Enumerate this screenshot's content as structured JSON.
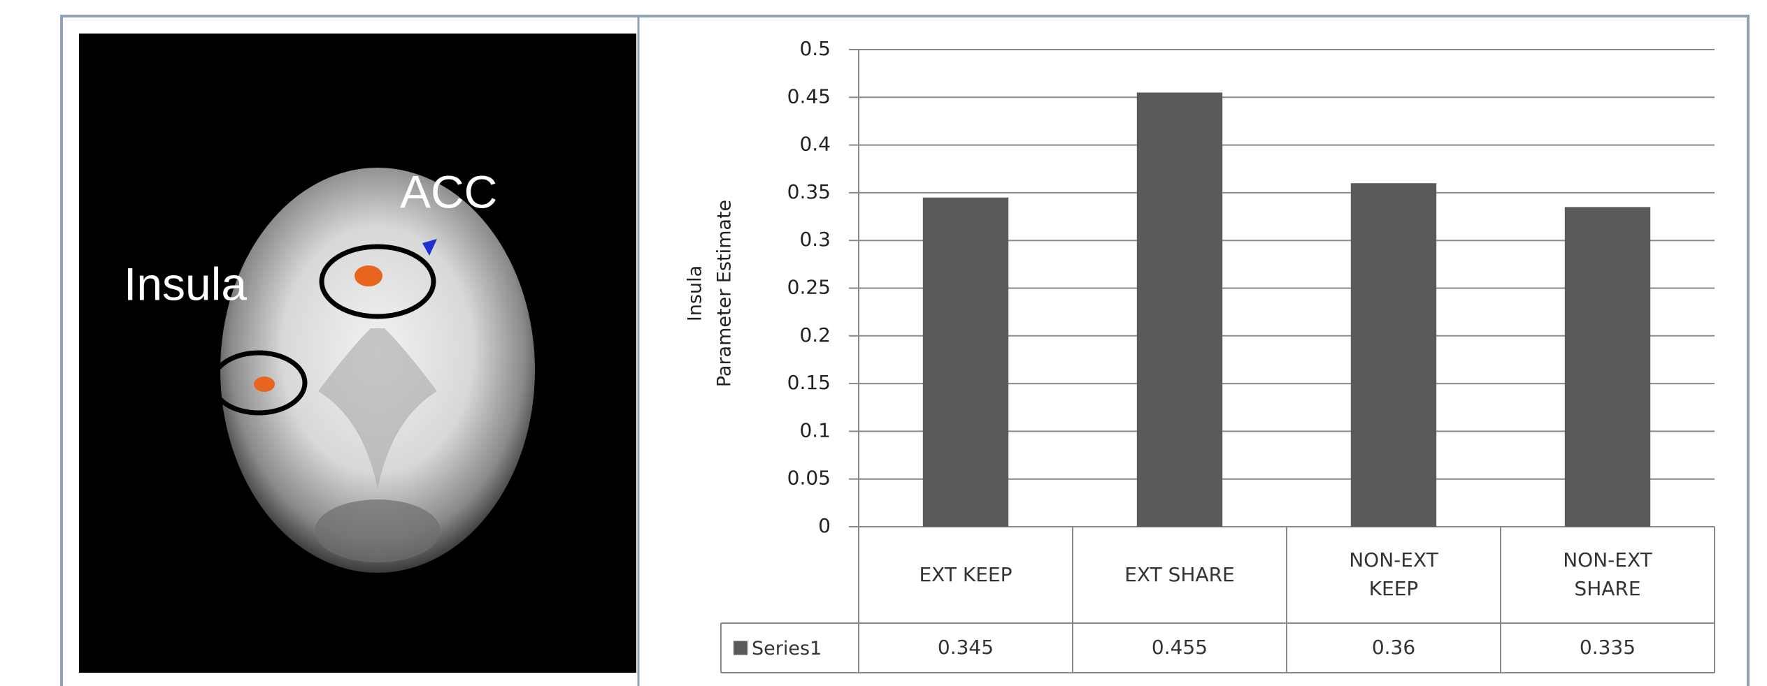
{
  "image_labels": [
    "Insula",
    "ACC"
  ],
  "chart_data": {
    "type": "bar",
    "ylabel": [
      "Insula",
      "Parameter Estimate"
    ],
    "categories": [
      "EXT KEEP",
      "EXT SHARE",
      "NON-EXT KEEP",
      "NON-EXT SHARE"
    ],
    "series": [
      {
        "name": "Series1",
        "color": "#5a5a5a",
        "values": [
          0.345,
          0.455,
          0.36,
          0.335
        ]
      }
    ],
    "ylim": [
      0,
      0.5
    ],
    "yticks": [
      0,
      0.05,
      0.1,
      0.15,
      0.2,
      0.25,
      0.3,
      0.35,
      0.4,
      0.45,
      0.5
    ],
    "grid": true,
    "data_table": true
  }
}
